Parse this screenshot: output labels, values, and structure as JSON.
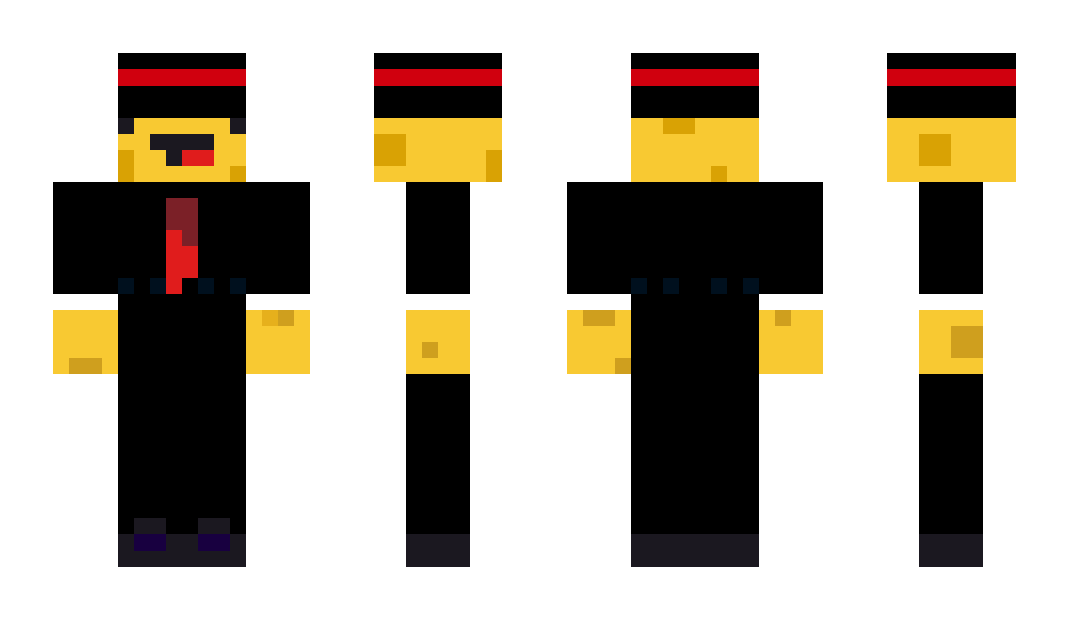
{
  "views": [
    "front",
    "side-right",
    "back",
    "side-left"
  ],
  "colors": {
    "hat": "#000000",
    "hat_band": "#d0000e",
    "skin": "#f8c932",
    "skin_shade": "#d9a204",
    "arm_shade": "#cf9f1e",
    "arm_highlight": "#e6b01c",
    "eye": "#1b1820",
    "tongue": "#e01c1c",
    "suit": "#000000",
    "tie_dark": "#7b2027",
    "tie": "#e01c1c",
    "button": "#00101e",
    "shoe": "#1b1820",
    "shoe_accent": "#180040"
  }
}
